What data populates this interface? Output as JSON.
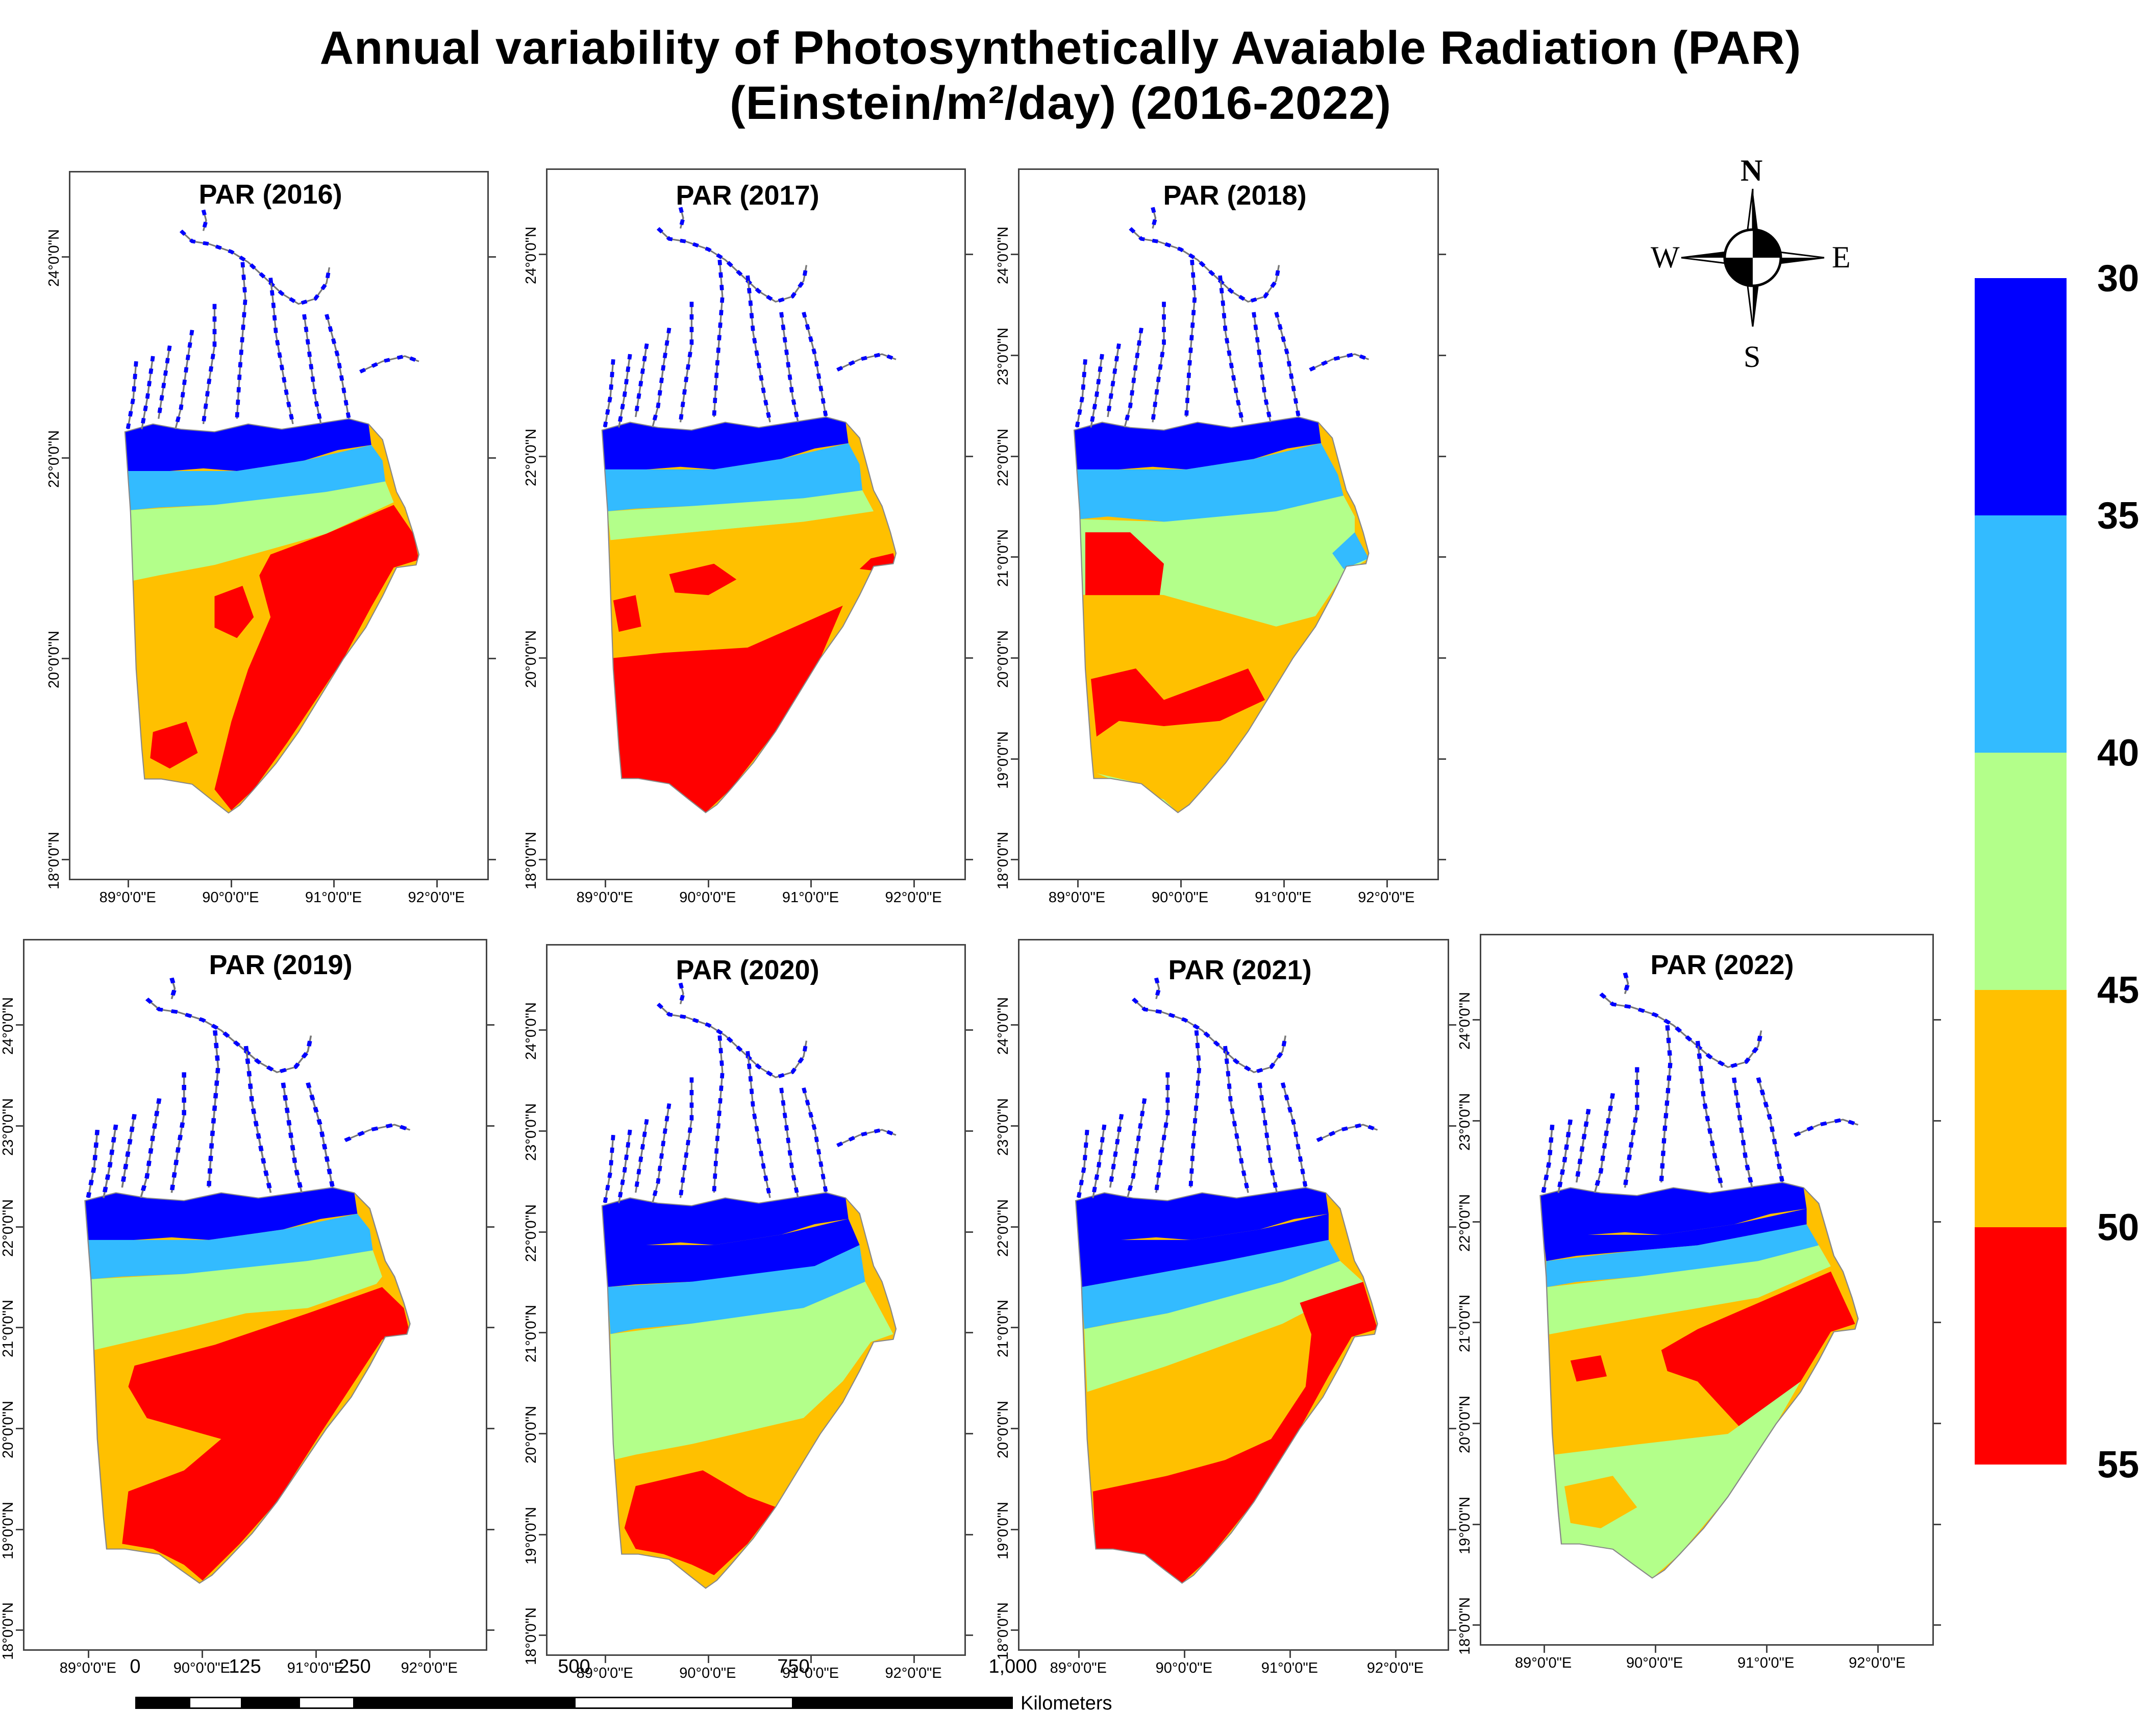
{
  "title": {
    "line1": "Annual variability of Photosynthetically Avaiable Radiation (PAR)",
    "line2": "(Einstein/m²/day) (2016-2022)"
  },
  "panels": [
    {
      "title": "PAR (2016)",
      "lat_labels": [
        "24°0'0\"N",
        "22°0'0\"N",
        "20°0'0\"N",
        "18°0'0\"N"
      ],
      "lon_labels": [
        "89°0'0\"E",
        "90°0'0\"E",
        "91°0'0\"E",
        "92°0'0\"E"
      ],
      "pattern": "2016"
    },
    {
      "title": "PAR (2017)",
      "lat_labels": [
        "24°0'0\"N",
        "22°0'0\"N",
        "20°0'0\"N",
        "18°0'0\"N"
      ],
      "lon_labels": [
        "89°0'0\"E",
        "90°0'0\"E",
        "91°0'0\"E",
        "92°0'0\"E"
      ],
      "pattern": "2017"
    },
    {
      "title": "PAR (2018)",
      "lat_labels": [
        "24°0'0\"N",
        "23°0'0\"N",
        "22°0'0\"N",
        "21°0'0\"N",
        "20°0'0\"N",
        "19°0'0\"N",
        "18°0'0\"N"
      ],
      "lon_labels": [
        "89°0'0\"E",
        "90°0'0\"E",
        "91°0'0\"E",
        "92°0'0\"E"
      ],
      "pattern": "2018"
    },
    {
      "title": "PAR (2019)",
      "lat_labels": [
        "24°0'0\"N",
        "23°0'0\"N",
        "22°0'0\"N",
        "21°0'0\"N",
        "20°0'0\"N",
        "19°0'0\"N",
        "18°0'0\"N"
      ],
      "lon_labels": [
        "89°0'0\"E",
        "90°0'0\"E",
        "91°0'0\"E",
        "92°0'0\"E"
      ],
      "pattern": "2019"
    },
    {
      "title": "PAR (2020)",
      "lat_labels": [
        "24°0'0\"N",
        "23°0'0\"N",
        "22°0'0\"N",
        "21°0'0\"N",
        "20°0'0\"N",
        "19°0'0\"N",
        "18°0'0\"N"
      ],
      "lon_labels": [
        "89°0'0\"E",
        "90°0'0\"E",
        "91°0'0\"E",
        "92°0'0\"E"
      ],
      "pattern": "2020"
    },
    {
      "title": "PAR (2021)",
      "lat_labels": [
        "24°0'0\"N",
        "23°0'0\"N",
        "22°0'0\"N",
        "21°0'0\"N",
        "20°0'0\"N",
        "19°0'0\"N",
        "18°0'0\"N"
      ],
      "lon_labels": [
        "89°0'0\"E",
        "90°0'0\"E",
        "91°0'0\"E",
        "92°0'0\"E"
      ],
      "pattern": "2021"
    },
    {
      "title": "PAR (2022)",
      "lat_labels": [
        "24°0'0\"N",
        "23°0'0\"N",
        "22°0'0\"N",
        "21°0'0\"N",
        "20°0'0\"N",
        "19°0'0\"N",
        "18°0'0\"N"
      ],
      "lon_labels": [
        "89°0'0\"E",
        "90°0'0\"E",
        "91°0'0\"E",
        "92°0'0\"E"
      ],
      "pattern": "2022"
    }
  ],
  "legend": {
    "labels": [
      "30",
      "35",
      "40",
      "45",
      "50",
      "55"
    ],
    "classes": [
      {
        "from": 30,
        "to": 35,
        "color": "#0000ff"
      },
      {
        "from": 35,
        "to": 40,
        "color": "#33bbff"
      },
      {
        "from": 40,
        "to": 45,
        "color": "#b3ff8a"
      },
      {
        "from": 45,
        "to": 50,
        "color": "#ffc000"
      },
      {
        "from": 50,
        "to": 55,
        "color": "#ff0000"
      }
    ]
  },
  "compass": {
    "n": "N",
    "s": "S",
    "e": "E",
    "w": "W"
  },
  "scale_bar": {
    "labels": [
      "0",
      "125",
      "250",
      "500",
      "750",
      "1,000"
    ],
    "unit": "Kilometers"
  }
}
